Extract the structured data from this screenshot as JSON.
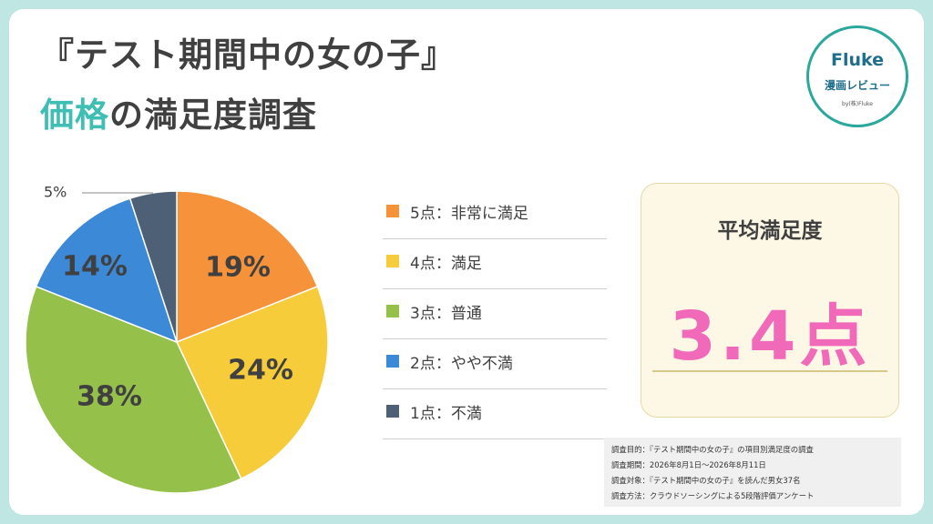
{
  "title_line1": "『テスト期間中の女の子』",
  "title_line2_accent": "価格",
  "title_line2_rest": "の満足度調査",
  "logo": {
    "brand": "Fluke",
    "sub": "漫画レビュー",
    "by": "by(株)Fluke"
  },
  "chart_data": {
    "type": "pie",
    "unit": "%",
    "slices": [
      {
        "label": "5点：非常に満足",
        "value": 19,
        "color": "#f5923a"
      },
      {
        "label": "4点：満足",
        "value": 24,
        "color": "#f7cc3b"
      },
      {
        "label": "3点：普通",
        "value": 38,
        "color": "#95c14a"
      },
      {
        "label": "2点：やや不満",
        "value": 14,
        "color": "#3c89d8"
      },
      {
        "label": "1点：不満",
        "value": 5,
        "color": "#4e6076"
      }
    ],
    "data_labels": [
      "19%",
      "24%",
      "38%",
      "14%",
      "5%"
    ]
  },
  "average": {
    "title": "平均満足度",
    "value": "3.4点"
  },
  "notes": [
    "調査目的：『テスト期間中の女の子』の項目別満足度の調査",
    "調査期間：2026年8月1日～2026年8月11日",
    "調査対象：『テスト期間中の女の子』を読んだ男女37名",
    "調査方法：クラウドソーシングによる5段階評価アンケート"
  ]
}
